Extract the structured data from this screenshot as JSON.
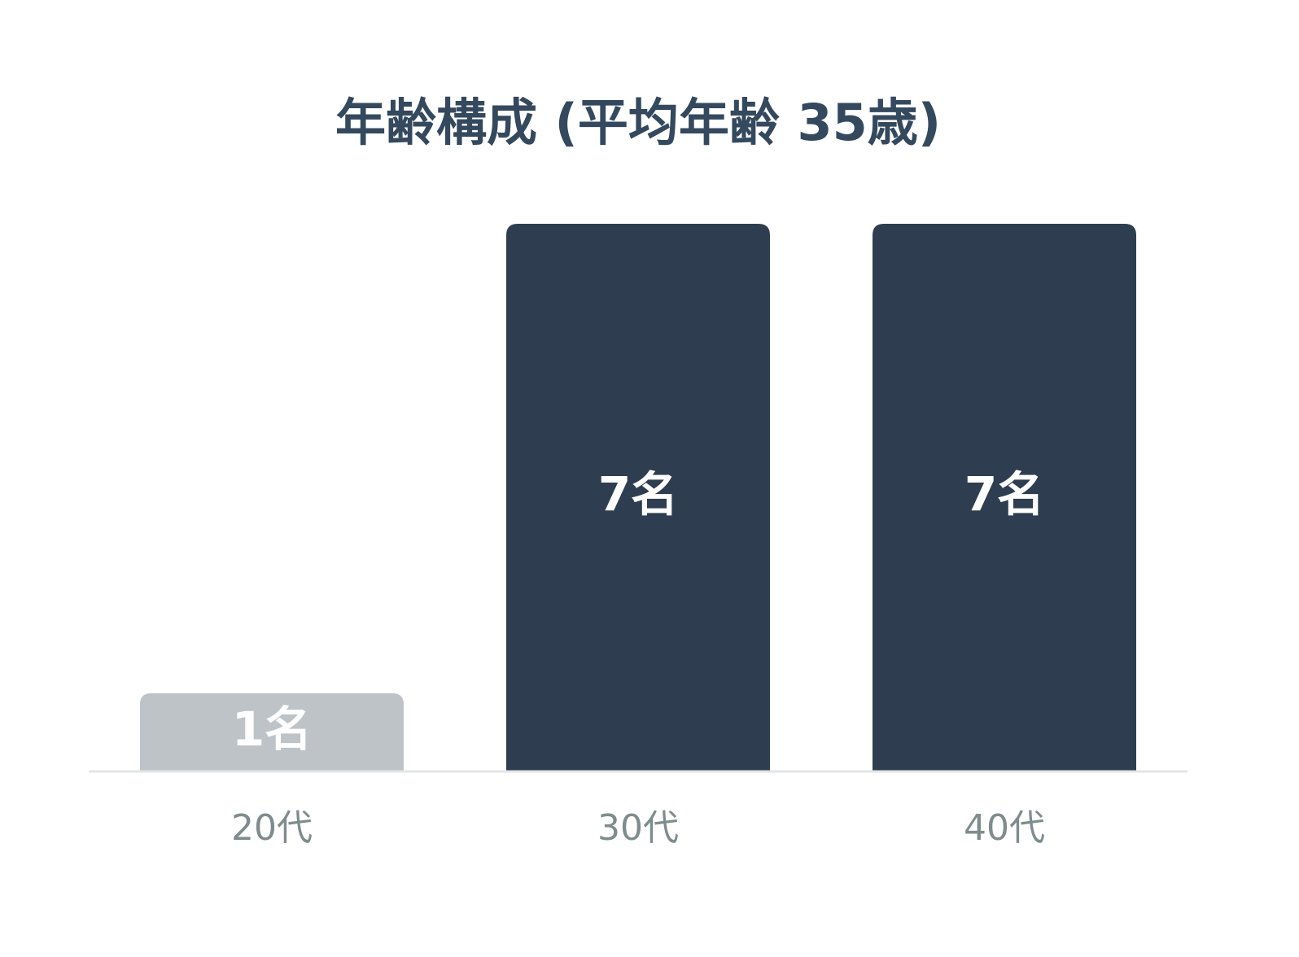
{
  "chart_data": {
    "type": "bar",
    "title": "年齢構成 (平均年齢 35歳)",
    "categories": [
      "20代",
      "30代",
      "40代"
    ],
    "values": [
      1,
      7,
      7
    ],
    "value_labels": [
      "1名",
      "7名",
      "7名"
    ],
    "colors": [
      "#bdc3c7",
      "#2e3e50",
      "#2e3e50"
    ]
  }
}
